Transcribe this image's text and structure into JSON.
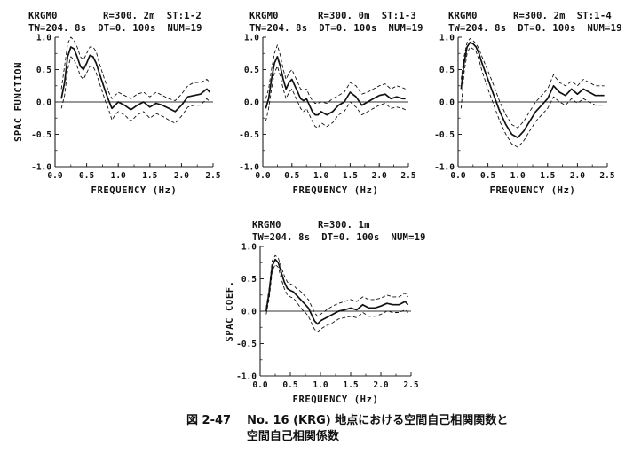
{
  "caption": {
    "fig_no": "図 2-47",
    "line1": "No. 16 (KRG) 地点における空間自己相関関数と",
    "line2": "空間自己相関係数"
  },
  "chart_data": [
    {
      "type": "line",
      "header_line1_left": "KRGM0",
      "header_line1_right": "R=300. 2m  ST:1-2",
      "header_line2": "TW=204. 8s  DT=0. 100s  NUM=19",
      "xlabel": "FREQUENCY (Hz)",
      "ylabel": "SPAC FUNCTION",
      "xlim": [
        0,
        2.5
      ],
      "ylim": [
        -1.0,
        1.0
      ],
      "xticks": [
        "0.0",
        "0.5",
        "1.0",
        "1.5",
        "2.0",
        "2.5"
      ],
      "yticks": [
        "1.0",
        "0.5",
        "0.0",
        "-0.5",
        "-1.0"
      ],
      "x": [
        0.1,
        0.15,
        0.2,
        0.25,
        0.3,
        0.35,
        0.4,
        0.45,
        0.5,
        0.55,
        0.6,
        0.65,
        0.7,
        0.75,
        0.8,
        0.85,
        0.9,
        0.95,
        1.0,
        1.1,
        1.2,
        1.3,
        1.4,
        1.5,
        1.6,
        1.7,
        1.8,
        1.9,
        2.0,
        2.1,
        2.2,
        2.3,
        2.4,
        2.45
      ],
      "series": [
        {
          "style": "solid",
          "values": [
            0.05,
            0.3,
            0.7,
            0.85,
            0.82,
            0.7,
            0.55,
            0.5,
            0.6,
            0.72,
            0.7,
            0.6,
            0.45,
            0.3,
            0.15,
            0.02,
            -0.1,
            -0.05,
            0.0,
            -0.05,
            -0.12,
            -0.05,
            0.0,
            -0.08,
            -0.02,
            -0.05,
            -0.1,
            -0.15,
            -0.05,
            0.08,
            0.1,
            0.12,
            0.2,
            0.15
          ]
        },
        {
          "style": "dashed",
          "values": [
            0.2,
            0.55,
            0.9,
            1.0,
            0.95,
            0.85,
            0.7,
            0.65,
            0.75,
            0.85,
            0.85,
            0.78,
            0.6,
            0.45,
            0.3,
            0.15,
            0.05,
            0.1,
            0.15,
            0.1,
            0.05,
            0.12,
            0.15,
            0.08,
            0.15,
            0.1,
            0.05,
            0.02,
            0.12,
            0.25,
            0.3,
            0.3,
            0.35,
            0.3
          ]
        },
        {
          "style": "dashed",
          "values": [
            -0.1,
            0.1,
            0.5,
            0.7,
            0.65,
            0.55,
            0.4,
            0.35,
            0.45,
            0.55,
            0.55,
            0.45,
            0.3,
            0.15,
            0.0,
            -0.12,
            -0.28,
            -0.2,
            -0.15,
            -0.2,
            -0.3,
            -0.2,
            -0.15,
            -0.25,
            -0.18,
            -0.22,
            -0.28,
            -0.33,
            -0.22,
            -0.08,
            -0.05,
            -0.05,
            0.05,
            0.0
          ]
        }
      ]
    },
    {
      "type": "line",
      "header_line1_left": "KRGM0",
      "header_line1_right": "R=300. 0m  ST:1-3",
      "header_line2": "TW=204. 8s  DT=0. 100s  NUM=19",
      "xlabel": "FREQUENCY (Hz)",
      "ylabel": "",
      "xlim": [
        0,
        2.5
      ],
      "ylim": [
        -1.0,
        1.0
      ],
      "xticks": [
        "0.0",
        "0.5",
        "1.0",
        "1.5",
        "2.0",
        "2.5"
      ],
      "yticks": [
        "1.0",
        "0.5",
        "0.0",
        "-0.5",
        "-1.0"
      ],
      "x": [
        0.05,
        0.1,
        0.15,
        0.2,
        0.25,
        0.3,
        0.35,
        0.4,
        0.45,
        0.5,
        0.55,
        0.6,
        0.65,
        0.7,
        0.75,
        0.8,
        0.85,
        0.9,
        0.95,
        1.0,
        1.1,
        1.2,
        1.3,
        1.4,
        1.5,
        1.6,
        1.7,
        1.8,
        1.9,
        2.0,
        2.1,
        2.2,
        2.3,
        2.4,
        2.45
      ],
      "series": [
        {
          "style": "solid",
          "values": [
            -0.1,
            0.05,
            0.35,
            0.6,
            0.7,
            0.55,
            0.35,
            0.2,
            0.3,
            0.35,
            0.25,
            0.15,
            0.05,
            0.02,
            0.05,
            -0.05,
            -0.15,
            -0.2,
            -0.2,
            -0.15,
            -0.2,
            -0.15,
            -0.05,
            0.0,
            0.15,
            0.08,
            -0.05,
            0.0,
            0.05,
            0.1,
            0.12,
            0.05,
            0.08,
            0.05,
            0.05
          ]
        },
        {
          "style": "dashed",
          "values": [
            0.05,
            0.2,
            0.5,
            0.75,
            0.88,
            0.72,
            0.5,
            0.35,
            0.45,
            0.5,
            0.4,
            0.3,
            0.2,
            0.18,
            0.2,
            0.1,
            0.02,
            -0.02,
            -0.02,
            0.0,
            -0.02,
            0.05,
            0.1,
            0.15,
            0.3,
            0.25,
            0.12,
            0.15,
            0.2,
            0.25,
            0.28,
            0.2,
            0.25,
            0.22,
            0.2
          ]
        },
        {
          "style": "dashed",
          "values": [
            -0.3,
            -0.1,
            0.2,
            0.45,
            0.55,
            0.4,
            0.2,
            0.05,
            0.15,
            0.2,
            0.1,
            0.0,
            -0.1,
            -0.15,
            -0.1,
            -0.2,
            -0.3,
            -0.38,
            -0.4,
            -0.32,
            -0.38,
            -0.32,
            -0.2,
            -0.15,
            0.0,
            -0.08,
            -0.2,
            -0.15,
            -0.1,
            -0.05,
            -0.02,
            -0.1,
            -0.08,
            -0.1,
            -0.12
          ]
        }
      ]
    },
    {
      "type": "line",
      "header_line1_left": "KRGM0",
      "header_line1_right": "R=300. 2m  ST:1-4",
      "header_line2": "TW=204. 8s  DT=0. 100s  NUM=19",
      "xlabel": "FREQUENCY (Hz)",
      "ylabel": "",
      "xlim": [
        0,
        2.5
      ],
      "ylim": [
        -1.0,
        1.0
      ],
      "xticks": [
        "0.0",
        "0.5",
        "1.0",
        "1.5",
        "2.0",
        "2.5"
      ],
      "yticks": [
        "1.0",
        "0.5",
        "0.0",
        "-0.5",
        "-1.0"
      ],
      "x": [
        0.05,
        0.1,
        0.15,
        0.2,
        0.25,
        0.3,
        0.35,
        0.4,
        0.5,
        0.6,
        0.7,
        0.8,
        0.9,
        1.0,
        1.1,
        1.2,
        1.3,
        1.4,
        1.5,
        1.6,
        1.7,
        1.8,
        1.9,
        2.0,
        2.1,
        2.2,
        2.3,
        2.4,
        2.45
      ],
      "series": [
        {
          "style": "solid",
          "values": [
            0.2,
            0.6,
            0.85,
            0.92,
            0.9,
            0.85,
            0.75,
            0.6,
            0.35,
            0.1,
            -0.15,
            -0.35,
            -0.5,
            -0.55,
            -0.45,
            -0.3,
            -0.15,
            -0.05,
            0.05,
            0.25,
            0.15,
            0.1,
            0.2,
            0.12,
            0.2,
            0.15,
            0.1,
            0.1,
            0.1
          ]
        },
        {
          "style": "dashed",
          "values": [
            0.35,
            0.7,
            0.92,
            0.98,
            0.95,
            0.9,
            0.82,
            0.7,
            0.48,
            0.25,
            0.0,
            -0.2,
            -0.35,
            -0.4,
            -0.3,
            -0.15,
            0.0,
            0.1,
            0.2,
            0.42,
            0.3,
            0.25,
            0.32,
            0.25,
            0.35,
            0.3,
            0.25,
            0.25,
            0.25
          ]
        },
        {
          "style": "dashed",
          "values": [
            -0.1,
            0.45,
            0.75,
            0.85,
            0.82,
            0.78,
            0.65,
            0.48,
            0.2,
            -0.05,
            -0.3,
            -0.5,
            -0.65,
            -0.7,
            -0.6,
            -0.45,
            -0.3,
            -0.2,
            -0.1,
            0.08,
            0.0,
            -0.05,
            0.05,
            -0.02,
            0.05,
            0.0,
            -0.05,
            -0.05,
            -0.05
          ]
        }
      ]
    },
    {
      "type": "line",
      "header_line1_left": "KRGM0",
      "header_line1_right": "R=300. 1m",
      "header_line2": "TW=204. 8s  DT=0. 100s  NUM=19",
      "xlabel": "FREQUENCY (Hz)",
      "ylabel": "SPAC COEF.",
      "xlim": [
        0,
        2.5
      ],
      "ylim": [
        -1.0,
        1.0
      ],
      "xticks": [
        "0.0",
        "0.5",
        "1.0",
        "1.5",
        "2.0",
        "2.5"
      ],
      "yticks": [
        "1.0",
        "0.5",
        "0.0",
        "-0.5",
        "-1.0"
      ],
      "x": [
        0.1,
        0.15,
        0.2,
        0.25,
        0.3,
        0.35,
        0.4,
        0.45,
        0.5,
        0.55,
        0.6,
        0.65,
        0.7,
        0.75,
        0.8,
        0.85,
        0.9,
        0.95,
        1.0,
        1.1,
        1.2,
        1.3,
        1.4,
        1.5,
        1.6,
        1.7,
        1.8,
        1.9,
        2.0,
        2.1,
        2.2,
        2.3,
        2.4,
        2.45
      ],
      "series": [
        {
          "style": "solid",
          "values": [
            0.0,
            0.3,
            0.7,
            0.8,
            0.75,
            0.6,
            0.45,
            0.35,
            0.32,
            0.3,
            0.25,
            0.2,
            0.15,
            0.1,
            0.05,
            -0.05,
            -0.15,
            -0.2,
            -0.15,
            -0.1,
            -0.05,
            0.0,
            0.02,
            0.05,
            0.02,
            0.1,
            0.05,
            0.05,
            0.08,
            0.12,
            0.1,
            0.1,
            0.15,
            0.1
          ]
        },
        {
          "style": "dashed",
          "values": [
            0.05,
            0.35,
            0.78,
            0.86,
            0.82,
            0.68,
            0.55,
            0.45,
            0.42,
            0.4,
            0.35,
            0.32,
            0.28,
            0.22,
            0.18,
            0.08,
            -0.02,
            -0.08,
            -0.05,
            0.02,
            0.08,
            0.12,
            0.15,
            0.18,
            0.15,
            0.22,
            0.18,
            0.18,
            0.2,
            0.25,
            0.22,
            0.22,
            0.28,
            0.22
          ]
        },
        {
          "style": "dashed",
          "values": [
            -0.05,
            0.2,
            0.62,
            0.72,
            0.68,
            0.5,
            0.35,
            0.25,
            0.22,
            0.2,
            0.15,
            0.08,
            0.02,
            -0.02,
            -0.08,
            -0.18,
            -0.28,
            -0.32,
            -0.28,
            -0.22,
            -0.18,
            -0.12,
            -0.1,
            -0.08,
            -0.1,
            -0.02,
            -0.08,
            -0.08,
            -0.05,
            0.0,
            -0.02,
            -0.02,
            0.02,
            -0.02
          ]
        }
      ]
    }
  ]
}
